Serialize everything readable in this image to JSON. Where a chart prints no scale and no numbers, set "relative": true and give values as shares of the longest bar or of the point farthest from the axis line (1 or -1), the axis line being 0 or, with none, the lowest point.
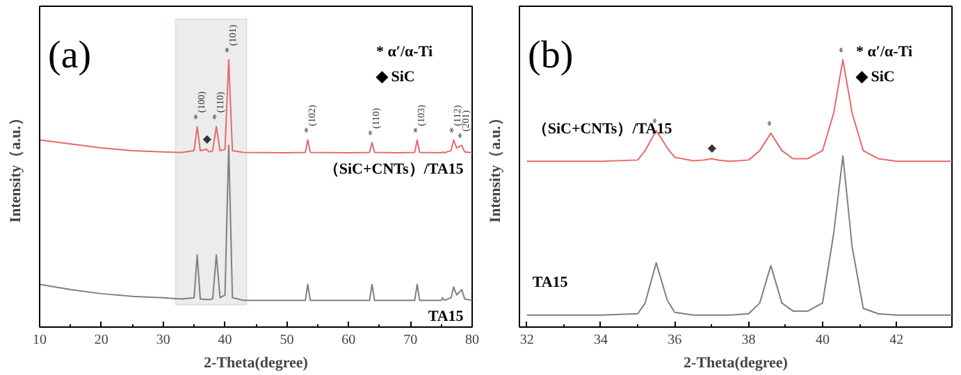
{
  "chart_data": [
    {
      "type": "line",
      "title": "(a)",
      "xlabel": "2-Theta(degree)",
      "ylabel": "Intensity（a.u.）",
      "relative": true,
      "tick_labels": "x",
      "grid": false,
      "xlim": [
        10,
        80
      ],
      "xticks": [
        10,
        20,
        30,
        40,
        50,
        60,
        70,
        80
      ],
      "x": [
        10,
        15,
        20,
        25,
        30,
        33,
        35,
        35.5,
        36,
        37,
        37.5,
        38,
        38.6,
        39.2,
        40,
        40.6,
        41.2,
        43,
        50,
        53,
        53.4,
        53.8,
        60,
        63.4,
        63.8,
        64.2,
        68,
        70.7,
        71.1,
        71.5,
        75,
        75.2,
        75.5,
        76.6,
        77,
        77.5,
        78.3,
        78.8,
        80
      ],
      "series": [
        {
          "name": "（SiC+CNTs）/TA15",
          "color": "#e8696b",
          "values": [
            0.7,
            0.685,
            0.67,
            0.66,
            0.655,
            0.653,
            0.66,
            0.75,
            0.66,
            0.665,
            0.655,
            0.66,
            0.75,
            0.66,
            0.665,
            1.0,
            0.66,
            0.653,
            0.652,
            0.653,
            0.7,
            0.653,
            0.652,
            0.653,
            0.69,
            0.653,
            0.652,
            0.653,
            0.7,
            0.653,
            0.652,
            0.655,
            0.652,
            0.66,
            0.7,
            0.67,
            0.68,
            0.655,
            0.652
          ]
        },
        {
          "name": "TA15",
          "color": "#7f7f7f",
          "values": [
            0.16,
            0.14,
            0.125,
            0.115,
            0.11,
            0.105,
            0.11,
            0.27,
            0.105,
            0.103,
            0.103,
            0.105,
            0.27,
            0.11,
            0.12,
            0.68,
            0.11,
            0.1,
            0.1,
            0.1,
            0.16,
            0.1,
            0.1,
            0.1,
            0.16,
            0.1,
            0.1,
            0.1,
            0.16,
            0.1,
            0.1,
            0.11,
            0.1,
            0.11,
            0.15,
            0.12,
            0.14,
            0.105,
            0.1
          ]
        }
      ],
      "bands": [
        {
          "axis": "x",
          "from": 32,
          "to": 43.5,
          "color": "#ececec"
        }
      ],
      "annotations": [
        "* α′/α-Ti",
        "◆ SiC",
        {
          "text": "*",
          "x": 35.5,
          "y": 0.75
        },
        {
          "text": "(100)",
          "x": 35.5,
          "y": 0.75
        },
        {
          "text": "◆",
          "x": 37,
          "y": 0.665
        },
        {
          "text": "*",
          "x": 38.6,
          "y": 0.75
        },
        {
          "text": "(110)",
          "x": 38.6,
          "y": 0.75
        },
        {
          "text": "*",
          "x": 40.6,
          "y": 1.0
        },
        {
          "text": "(101)",
          "x": 40.6,
          "y": 1.0
        },
        {
          "text": "*",
          "x": 53.4,
          "y": 0.7
        },
        {
          "text": "(102)",
          "x": 53.4,
          "y": 0.7
        },
        {
          "text": "*",
          "x": 63.8,
          "y": 0.69
        },
        {
          "text": "(110)",
          "x": 63.8,
          "y": 0.69
        },
        {
          "text": "*",
          "x": 71.1,
          "y": 0.7
        },
        {
          "text": "(103)",
          "x": 71.1,
          "y": 0.7
        },
        {
          "text": "*",
          "x": 77,
          "y": 0.7
        },
        {
          "text": "(112)",
          "x": 77,
          "y": 0.7
        },
        {
          "text": "*",
          "x": 78.3,
          "y": 0.68
        },
        {
          "text": "(201)",
          "x": 78.3,
          "y": 0.68
        }
      ]
    },
    {
      "type": "line",
      "title": "(b)",
      "xlabel": "2-Theta(degree)",
      "ylabel": "Intensity（a.u.）",
      "relative": true,
      "tick_labels": "x",
      "grid": false,
      "xlim": [
        31.8,
        43.5
      ],
      "xticks": [
        32,
        34,
        36,
        38,
        40,
        42
      ],
      "x": [
        32,
        33,
        34,
        35,
        35.2,
        35.5,
        35.8,
        36,
        36.5,
        36.8,
        37,
        37.2,
        37.5,
        38,
        38.3,
        38.6,
        38.9,
        39.2,
        39.6,
        40,
        40.3,
        40.55,
        40.8,
        41.1,
        41.5,
        42,
        43,
        43.5
      ],
      "series": [
        {
          "name": "（SiC+CNTs）/TA15",
          "color": "#e8696b",
          "values": [
            0.62,
            0.62,
            0.62,
            0.625,
            0.66,
            0.735,
            0.67,
            0.635,
            0.622,
            0.625,
            0.63,
            0.624,
            0.62,
            0.625,
            0.66,
            0.725,
            0.66,
            0.63,
            0.63,
            0.66,
            0.8,
            1.0,
            0.8,
            0.66,
            0.63,
            0.62,
            0.62,
            0.62
          ]
        },
        {
          "name": "TA15",
          "color": "#7f7f7f",
          "values": [
            0.045,
            0.045,
            0.045,
            0.05,
            0.09,
            0.24,
            0.1,
            0.055,
            0.045,
            0.045,
            0.045,
            0.045,
            0.045,
            0.05,
            0.09,
            0.23,
            0.09,
            0.06,
            0.06,
            0.09,
            0.35,
            0.64,
            0.3,
            0.07,
            0.05,
            0.045,
            0.045,
            0.045
          ]
        }
      ],
      "annotations": [
        "* α′/α-Ti",
        "◆ SiC",
        {
          "text": "*",
          "x": 35.5,
          "y": 0.735
        },
        {
          "text": "◆",
          "x": 37.0,
          "y": 0.63
        },
        {
          "text": "*",
          "x": 38.6,
          "y": 0.725
        },
        {
          "text": "*",
          "x": 40.55,
          "y": 1.0
        }
      ]
    }
  ]
}
